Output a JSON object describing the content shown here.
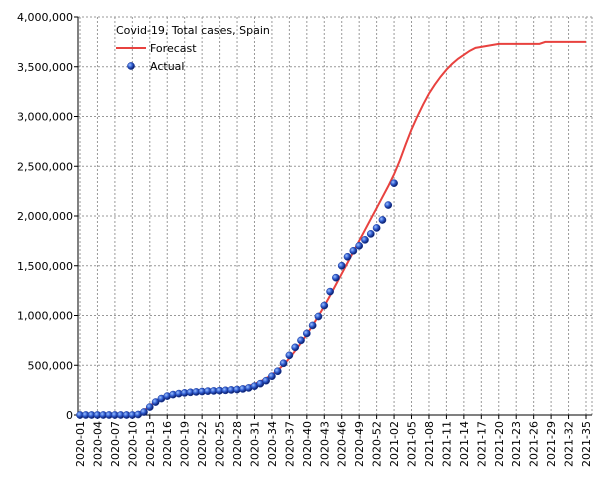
{
  "chart_data": {
    "type": "line",
    "title": "Covid-19, Total cases, Spain",
    "categories": [
      "2020-01",
      null,
      null,
      "2020-04",
      null,
      null,
      "2020-07",
      null,
      null,
      "2020-10",
      null,
      null,
      "2020-13",
      null,
      null,
      "2020-16",
      null,
      null,
      "2020-19",
      null,
      null,
      "2020-22",
      null,
      null,
      "2020-25",
      null,
      null,
      "2020-28",
      null,
      null,
      "2020-31",
      null,
      null,
      "2020-34",
      null,
      null,
      "2020-37",
      null,
      null,
      "2020-40",
      null,
      null,
      "2020-43",
      null,
      null,
      "2020-46",
      null,
      null,
      "2020-49",
      null,
      null,
      "2020-52",
      null,
      null,
      "2021-02",
      null,
      null,
      "2021-05",
      null,
      null,
      "2021-08",
      null,
      null,
      "2021-11",
      null,
      null,
      "2021-14",
      null,
      null,
      "2021-17",
      null,
      null,
      "2021-20",
      null,
      null,
      "2021-23",
      null,
      null,
      "2021-26",
      null,
      null,
      "2021-29",
      null,
      null,
      "2021-32",
      null,
      null,
      "2021-35"
    ],
    "series": [
      {
        "name": "Forecast",
        "color": "#e8423f",
        "style": "line",
        "values": [
          0,
          0,
          0,
          0,
          0,
          0,
          0,
          0,
          0,
          2000,
          15000,
          45000,
          90000,
          135000,
          165000,
          185000,
          200000,
          210000,
          217000,
          222000,
          226000,
          230000,
          234000,
          238000,
          243000,
          249000,
          256000,
          265000,
          277000,
          292000,
          312000,
          337000,
          368000,
          405000,
          450000,
          505000,
          570000,
          645000,
          725000,
          810000,
          900000,
          995000,
          1095000,
          1200000,
          1310000,
          1420000,
          1530000,
          1640000,
          1750000,
          1860000,
          1970000,
          2080000,
          2190000,
          2300000,
          2420000,
          2560000,
          2720000,
          2870000,
          3000000,
          3120000,
          3230000,
          3320000,
          3400000,
          3470000,
          3530000,
          3580000,
          3620000,
          3660000,
          3690000,
          3700000,
          3710000,
          3720000,
          3730000,
          3730000,
          3730000,
          3730000,
          3730000,
          3730000,
          3730000,
          3730000,
          3750000,
          3750000,
          3750000,
          3750000,
          3750000,
          3750000,
          3750000,
          3750000
        ]
      },
      {
        "name": "Actual",
        "color": "#1a3a9e",
        "style": "points",
        "values": [
          0,
          0,
          0,
          0,
          0,
          0,
          0,
          0,
          0,
          0,
          5000,
          30000,
          80000,
          130000,
          165000,
          190000,
          205000,
          215000,
          222000,
          228000,
          232000,
          236000,
          240000,
          242000,
          245000,
          248000,
          252000,
          256000,
          262000,
          272000,
          290000,
          315000,
          345000,
          390000,
          440000,
          520000,
          600000,
          680000,
          750000,
          820000,
          900000,
          990000,
          1100000,
          1240000,
          1380000,
          1500000,
          1590000,
          1650000,
          1700000,
          1760000,
          1820000,
          1880000,
          1960000,
          2110000,
          2330000,
          null,
          null,
          null,
          null,
          null,
          null,
          null,
          null,
          null,
          null,
          null,
          null,
          null,
          null,
          null,
          null,
          null,
          null,
          null,
          null,
          null,
          null,
          null,
          null,
          null,
          null,
          null,
          null,
          null,
          null,
          null,
          null,
          null
        ]
      }
    ],
    "ylim": [
      0,
      4000000
    ],
    "yticks": [
      {
        "value": 0,
        "label": "0"
      },
      {
        "value": 500000,
        "label": "500,000"
      },
      {
        "value": 1000000,
        "label": "1,000,000"
      },
      {
        "value": 1500000,
        "label": "1,500,000"
      },
      {
        "value": 2000000,
        "label": "2,000,000"
      },
      {
        "value": 2500000,
        "label": "2,500,000"
      },
      {
        "value": 3000000,
        "label": "3,000,000"
      },
      {
        "value": 3500000,
        "label": "3,500,000"
      },
      {
        "value": 4000000,
        "label": "4,000,000"
      }
    ],
    "grid": true,
    "legend": "top-left"
  }
}
